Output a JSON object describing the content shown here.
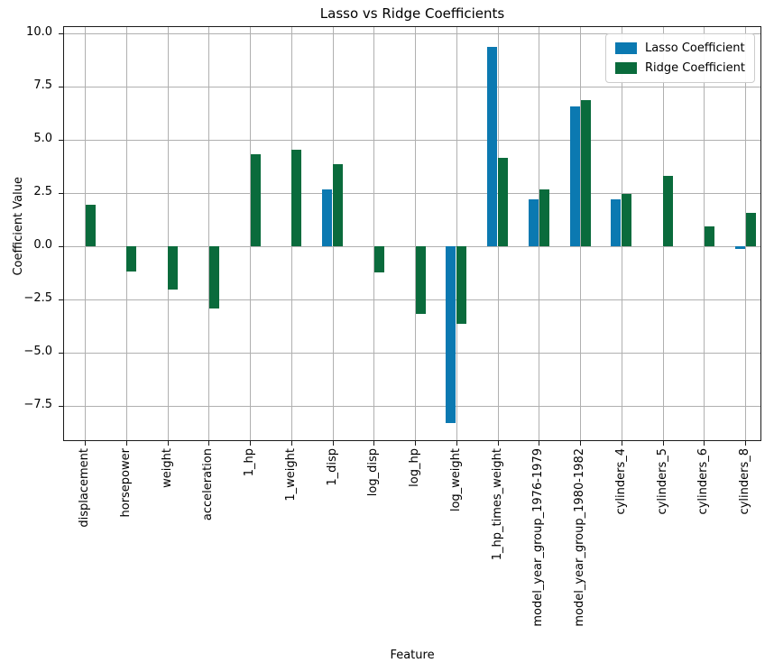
{
  "chart_data": {
    "type": "bar",
    "title": "Lasso vs Ridge Coefficients",
    "xlabel": "Feature",
    "ylabel": "Coefficient Value",
    "categories": [
      "displacement",
      "horsepower",
      "weight",
      "acceleration",
      "1_hp",
      "1_weight",
      "1_disp",
      "log_disp",
      "log_hp",
      "log_weight",
      "1_hp_times_weight",
      "model_year_group_1976-1979",
      "model_year_group_1980-1982",
      "cylinders_4",
      "cylinders_5",
      "cylinders_6",
      "cylinders_8"
    ],
    "series": [
      {
        "name": "Lasso Coefficient",
        "color": "#0b79b1",
        "values": [
          0,
          0,
          0,
          0,
          0,
          0,
          2.65,
          0,
          0,
          -8.3,
          9.35,
          2.2,
          6.55,
          2.2,
          0,
          0,
          -0.12
        ]
      },
      {
        "name": "Ridge Coefficient",
        "color": "#0a6b3c",
        "values": [
          1.95,
          -1.2,
          -2.05,
          -2.95,
          4.3,
          4.55,
          3.85,
          -1.25,
          -3.2,
          -3.65,
          4.15,
          2.65,
          6.85,
          2.45,
          3.3,
          0.95,
          1.55
        ]
      }
    ],
    "ylim": [
      -9.11,
      10.29
    ],
    "yticks": [
      10.0,
      7.5,
      5.0,
      2.5,
      0.0,
      -2.5,
      -5.0,
      -7.5
    ],
    "ytick_labels": [
      "10.0",
      "7.5",
      "5.0",
      "2.5",
      "0.0",
      "−2.5",
      "−5.0",
      "−7.5"
    ],
    "grid": true,
    "legend_position": "upper right",
    "grid_color": "#b0b0b0",
    "spine_color": "#1a1a1a"
  }
}
